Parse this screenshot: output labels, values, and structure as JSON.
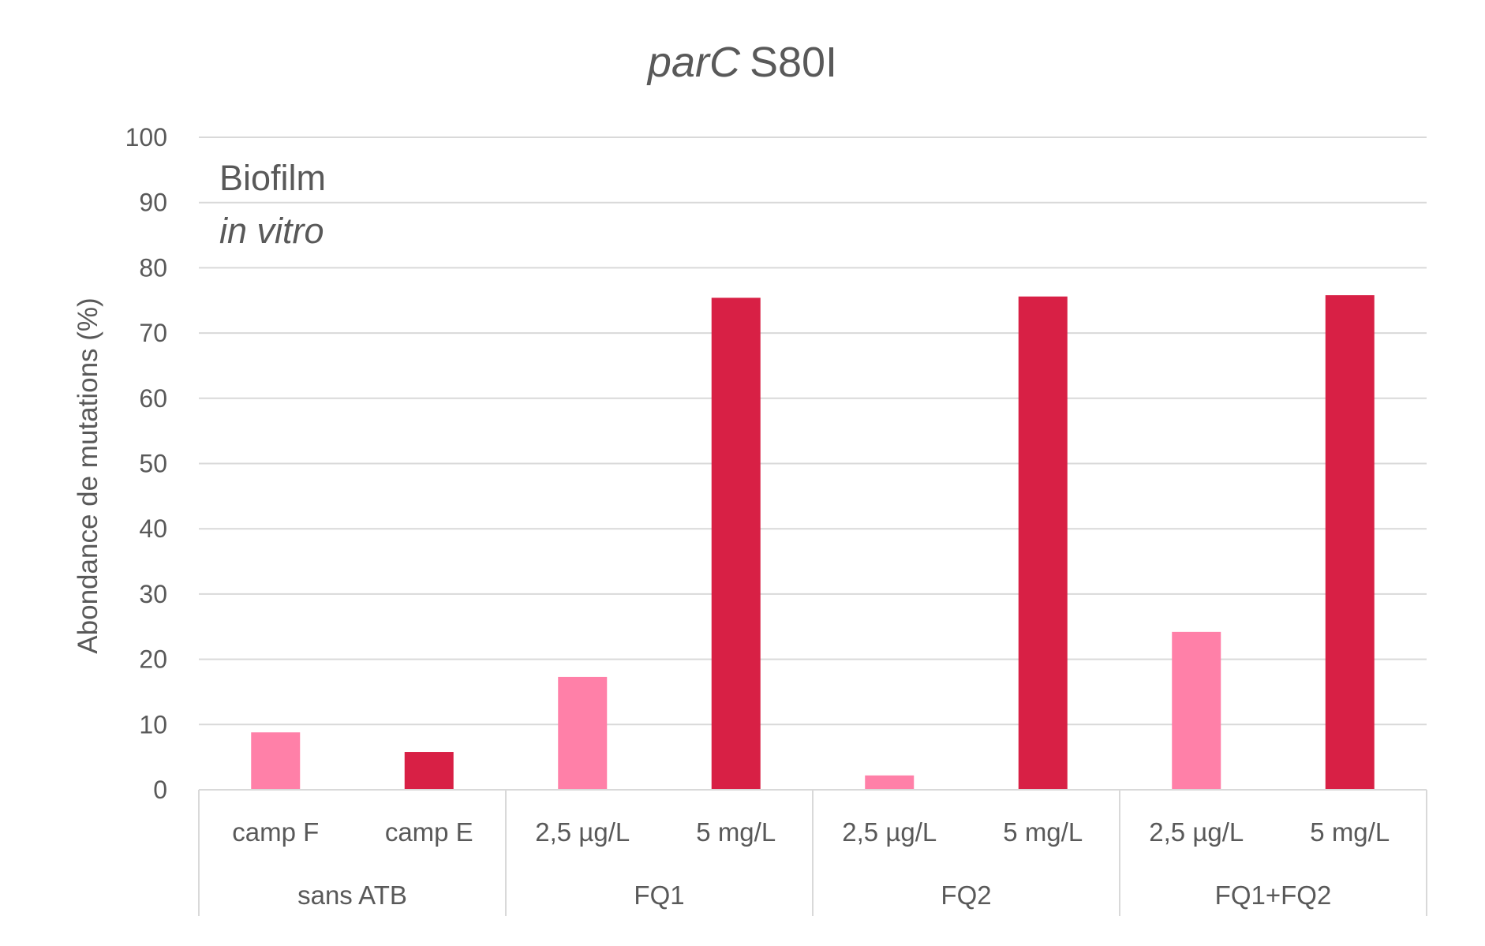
{
  "chart_data": {
    "type": "bar",
    "title": {
      "italic_part": "parC",
      "rest": "S80I"
    },
    "ylabel": "Abondance de mutations (%)",
    "xlabel": "",
    "ylim": [
      0,
      100
    ],
    "yticks": [
      0,
      10,
      20,
      30,
      40,
      50,
      60,
      70,
      80,
      90,
      100
    ],
    "grid": true,
    "annotation": {
      "line1": "Biofilm",
      "line2": "in vitro"
    },
    "groups": [
      {
        "label": "sans ATB",
        "categories": [
          "camp F",
          "camp E"
        ]
      },
      {
        "label": "FQ1",
        "categories": [
          "2,5 µg/L",
          "5 mg/L"
        ]
      },
      {
        "label": "FQ2",
        "categories": [
          "2,5 µg/L",
          "5 mg/L"
        ]
      },
      {
        "label": "FQ1+FQ2",
        "categories": [
          "2,5 µg/L",
          "5 mg/L"
        ]
      }
    ],
    "values": [
      8.8,
      5.8,
      17.3,
      75.4,
      2.2,
      75.6,
      24.2,
      75.8
    ],
    "bar_colors": [
      "#ff80a8",
      "#d82045",
      "#ff80a8",
      "#d82045",
      "#ff80a8",
      "#d82045",
      "#ff80a8",
      "#d82045"
    ]
  }
}
